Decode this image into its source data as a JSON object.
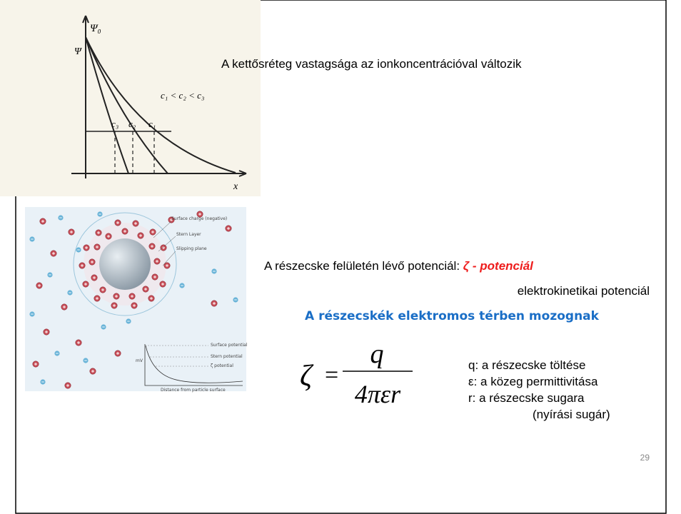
{
  "slide": {
    "graph": {
      "psi0": "Ψ₀",
      "psi": "Ψ",
      "relation": "c₁ < c₂ < c₃",
      "c3": "c₃",
      "c2": "c₂",
      "c1": "c₁",
      "x_axis": "x"
    },
    "heading": "A kettősréteg vastagsága az ionkoncentrációval változik",
    "diagram": {
      "surface_charge": "Surface charge (negative)",
      "stern_layer": "Stern Layer",
      "slipping_plane": "Slipping plane",
      "surface_potential": "Surface potential",
      "stern_potential": "Stern potential",
      "zeta_potential": "ζ potential",
      "unit": "mV",
      "distance": "Distance from particle surface"
    },
    "zeta_line": {
      "prefix": "A részecske felületén lévő potenciál:",
      "term": "ζ - potenciál"
    },
    "subtitle": "elektrokinetikai  potenciál",
    "motion": "A részecskék elektromos térben mozognak",
    "formula": {
      "lhs": "ζ",
      "equals": "=",
      "numerator": "q",
      "denominator": "4πεr"
    },
    "legend": [
      "q: a részecske töltése",
      "ε: a közeg permittivitása",
      "r: a részecske sugara",
      "(nyírási sugár)"
    ],
    "page_number": "29"
  }
}
